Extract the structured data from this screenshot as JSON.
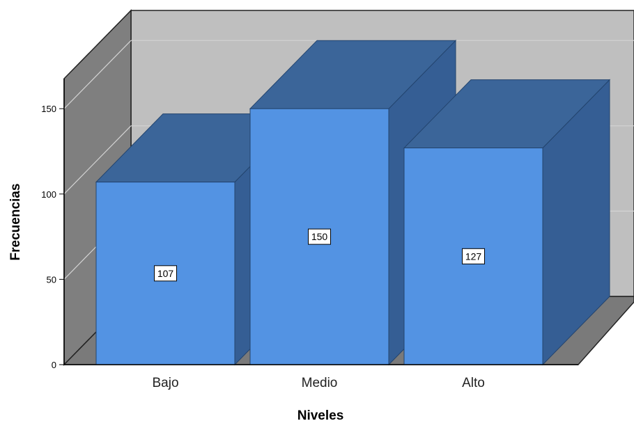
{
  "chart_data": {
    "type": "bar",
    "style": "3d",
    "categories": [
      "Bajo",
      "Medio",
      "Alto"
    ],
    "values": [
      107,
      150,
      127
    ],
    "data_labels": [
      "107",
      "150",
      "127"
    ],
    "title": "",
    "xlabel": "Niveles",
    "ylabel": "Frecuencias",
    "ylim": [
      0,
      150
    ],
    "yticks": [
      0,
      50,
      100,
      150
    ],
    "ytick_labels": [
      "0",
      "50",
      "100",
      "150"
    ],
    "grid": true,
    "legend": "none",
    "colors": {
      "bar_front": "#5393E3",
      "bar_top": "#3B6599",
      "bar_side": "#355E94",
      "back_wall": "#BFBFBF",
      "side_wall": "#7F7F7F",
      "floor": "#7A7A7A",
      "grid": "#D4D4D4"
    }
  }
}
